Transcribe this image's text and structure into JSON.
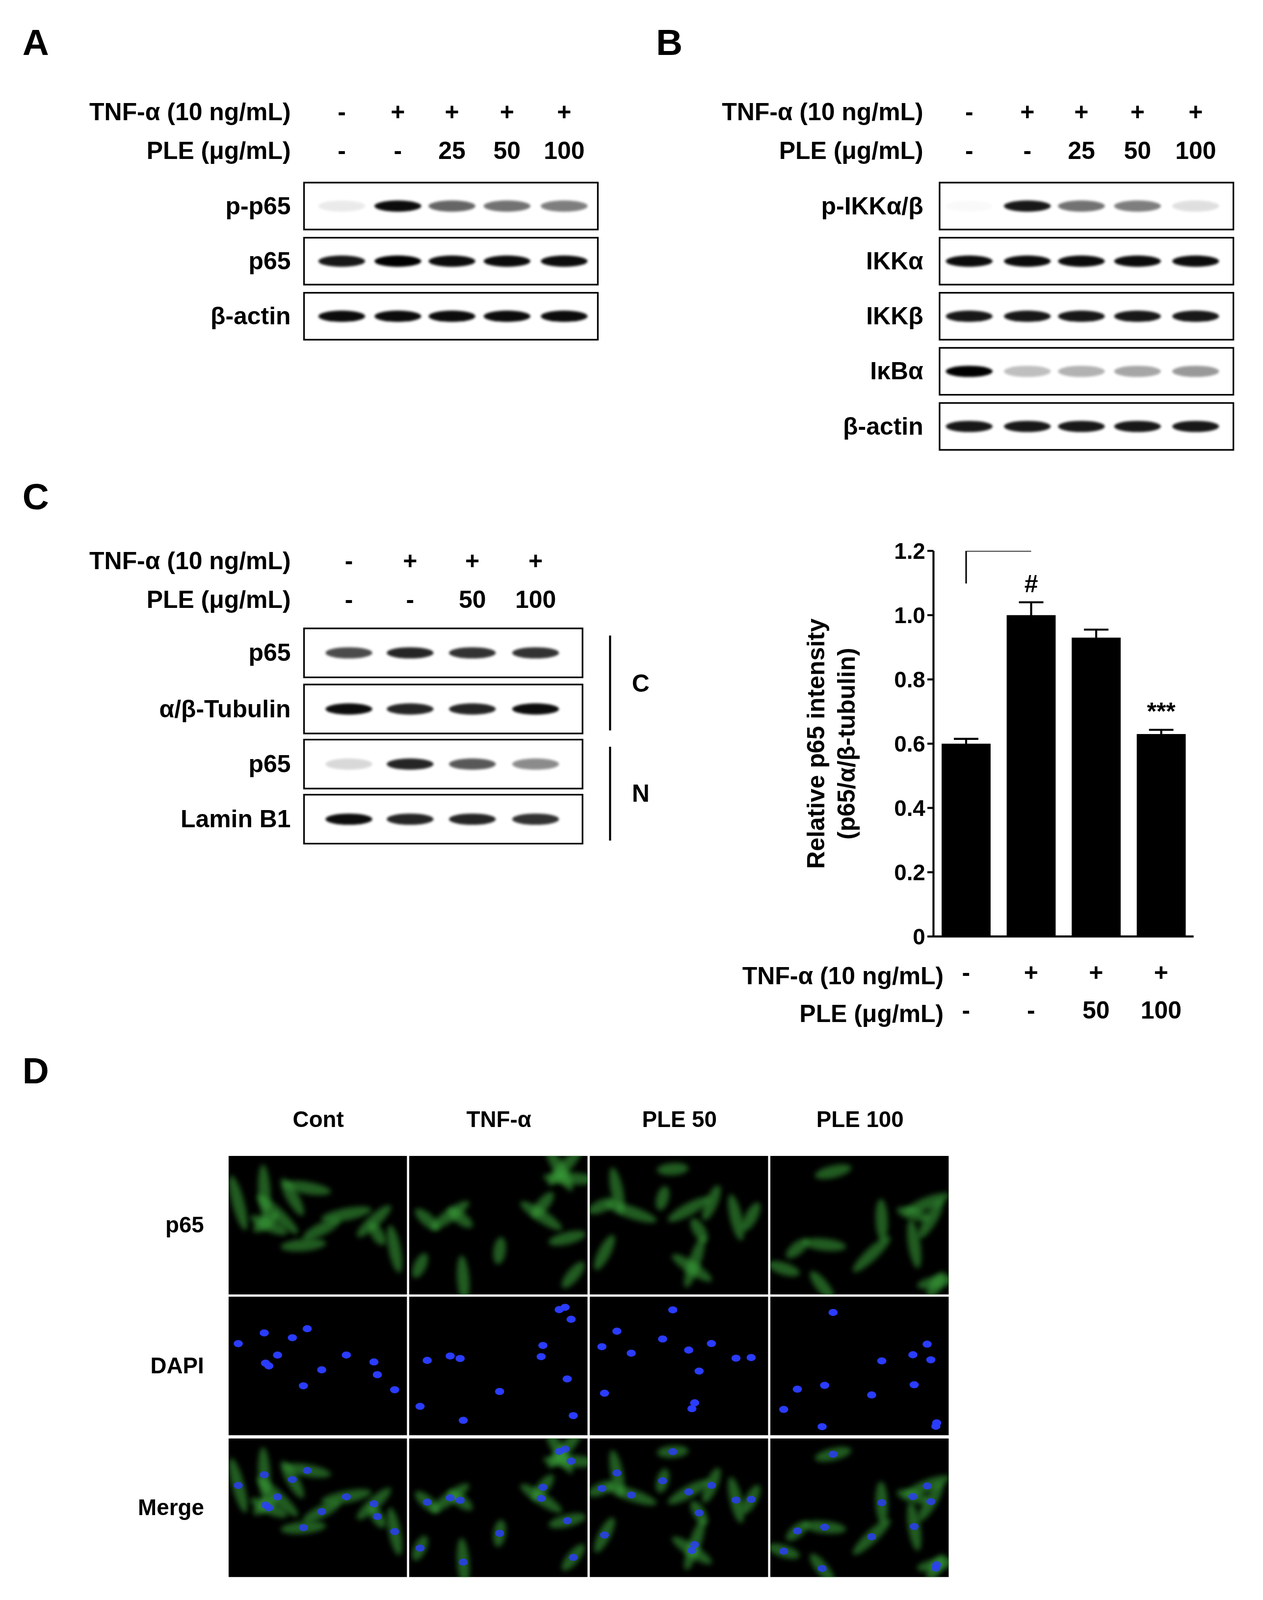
{
  "panels": {
    "A": {
      "label": "A",
      "conditions": [
        {
          "label": "TNF-α (10 ng/mL)",
          "values": [
            "-",
            "+",
            "+",
            "+",
            "+"
          ]
        },
        {
          "label": "PLE (μg/mL)",
          "values": [
            "-",
            "-",
            "25",
            "50",
            "100"
          ]
        }
      ],
      "blots": [
        {
          "name": "p-p65",
          "intensity": [
            0.08,
            0.95,
            0.6,
            0.55,
            0.5
          ]
        },
        {
          "name": "p65",
          "intensity": [
            0.9,
            1.0,
            0.95,
            0.95,
            0.95
          ]
        },
        {
          "name": "β-actin",
          "intensity": [
            0.95,
            0.95,
            0.95,
            0.95,
            0.95
          ]
        }
      ]
    },
    "B": {
      "label": "B",
      "conditions": [
        {
          "label": "TNF-α (10 ng/mL)",
          "values": [
            "-",
            "+",
            "+",
            "+",
            "+"
          ]
        },
        {
          "label": "PLE (μg/mL)",
          "values": [
            "-",
            "-",
            "25",
            "50",
            "100"
          ]
        }
      ],
      "blots": [
        {
          "name": "p-IKKα/β",
          "intensity": [
            0.02,
            0.9,
            0.55,
            0.5,
            0.12
          ]
        },
        {
          "name": "IKKα",
          "intensity": [
            0.95,
            0.95,
            0.95,
            0.95,
            0.95
          ]
        },
        {
          "name": "IKKβ",
          "intensity": [
            0.9,
            0.9,
            0.9,
            0.9,
            0.9
          ]
        },
        {
          "name": "IκBα",
          "intensity": [
            1.0,
            0.25,
            0.3,
            0.35,
            0.4
          ]
        },
        {
          "name": "β-actin",
          "intensity": [
            0.9,
            0.9,
            0.9,
            0.9,
            0.9
          ]
        }
      ]
    },
    "C": {
      "label": "C",
      "conditions": [
        {
          "label": "TNF-α (10 ng/mL)",
          "values": [
            "-",
            "+",
            "+",
            "+"
          ]
        },
        {
          "label": "PLE (μg/mL)",
          "values": [
            "-",
            "-",
            "50",
            "100"
          ]
        }
      ],
      "fractions": [
        {
          "label": "C",
          "blots": [
            {
              "name": "p65",
              "intensity": [
                0.7,
                0.85,
                0.8,
                0.8
              ]
            },
            {
              "name": "α/β-Tubulin",
              "intensity": [
                0.95,
                0.85,
                0.85,
                0.95
              ]
            }
          ]
        },
        {
          "label": "N",
          "blots": [
            {
              "name": "p65",
              "intensity": [
                0.15,
                0.85,
                0.65,
                0.45
              ]
            },
            {
              "name": "Lamin B1",
              "intensity": [
                0.95,
                0.85,
                0.85,
                0.8
              ]
            }
          ]
        }
      ]
    },
    "D": {
      "label": "D",
      "columns": [
        "Cont",
        "TNF-α",
        "PLE 50",
        "PLE 100"
      ],
      "rows": [
        "p65",
        "DAPI",
        "Merge"
      ]
    }
  },
  "chart_data": {
    "type": "bar",
    "panel": "C",
    "ylabel": [
      "Relative p65 intensity",
      "(p65/α/β-tubulin)"
    ],
    "conditions": [
      {
        "label": "TNF-α (10 ng/mL)",
        "values": [
          "-",
          "+",
          "+",
          "+"
        ]
      },
      {
        "label": "PLE (μg/mL)",
        "values": [
          "-",
          "-",
          "50",
          "100"
        ]
      }
    ],
    "values": [
      0.6,
      1.0,
      0.93,
      0.63
    ],
    "errors": [
      0.015,
      0.04,
      0.025,
      0.013
    ],
    "color": "#000000",
    "ylim": [
      0,
      1.2
    ],
    "yticks": [
      0,
      0.2,
      0.4,
      0.6,
      0.8,
      {
        "value": 1,
        "label": "1.0"
      },
      1.2
    ],
    "grid": false,
    "legend": false,
    "annotations": [
      {
        "text": "#",
        "bar": 1,
        "compare_to": 0
      },
      {
        "text": "***",
        "bar": 3
      }
    ]
  }
}
